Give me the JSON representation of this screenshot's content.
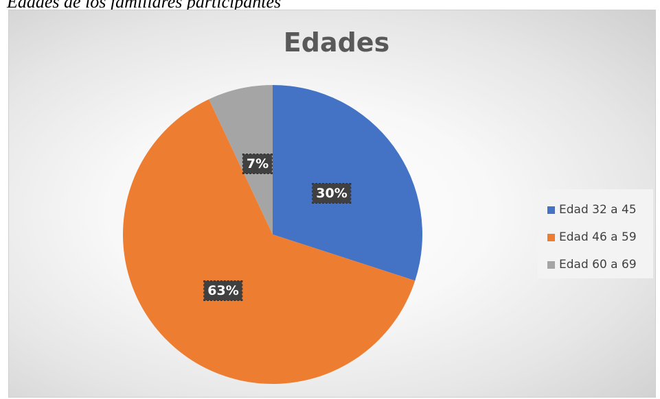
{
  "caption": "Edades de los familiares participantes",
  "chart_data": {
    "type": "pie",
    "title": "Edades",
    "categories": [
      "Edad 32 a 45",
      "Edad 46 a 59",
      "Edad 60 a 69"
    ],
    "values": [
      30,
      63,
      7
    ],
    "data_labels": [
      "30%",
      "63%",
      "7%"
    ],
    "colors": [
      "#4472c4",
      "#ed7d31",
      "#a5a5a5"
    ],
    "legend_position": "right",
    "start_angle": "12 o'clock",
    "direction": "clockwise"
  }
}
